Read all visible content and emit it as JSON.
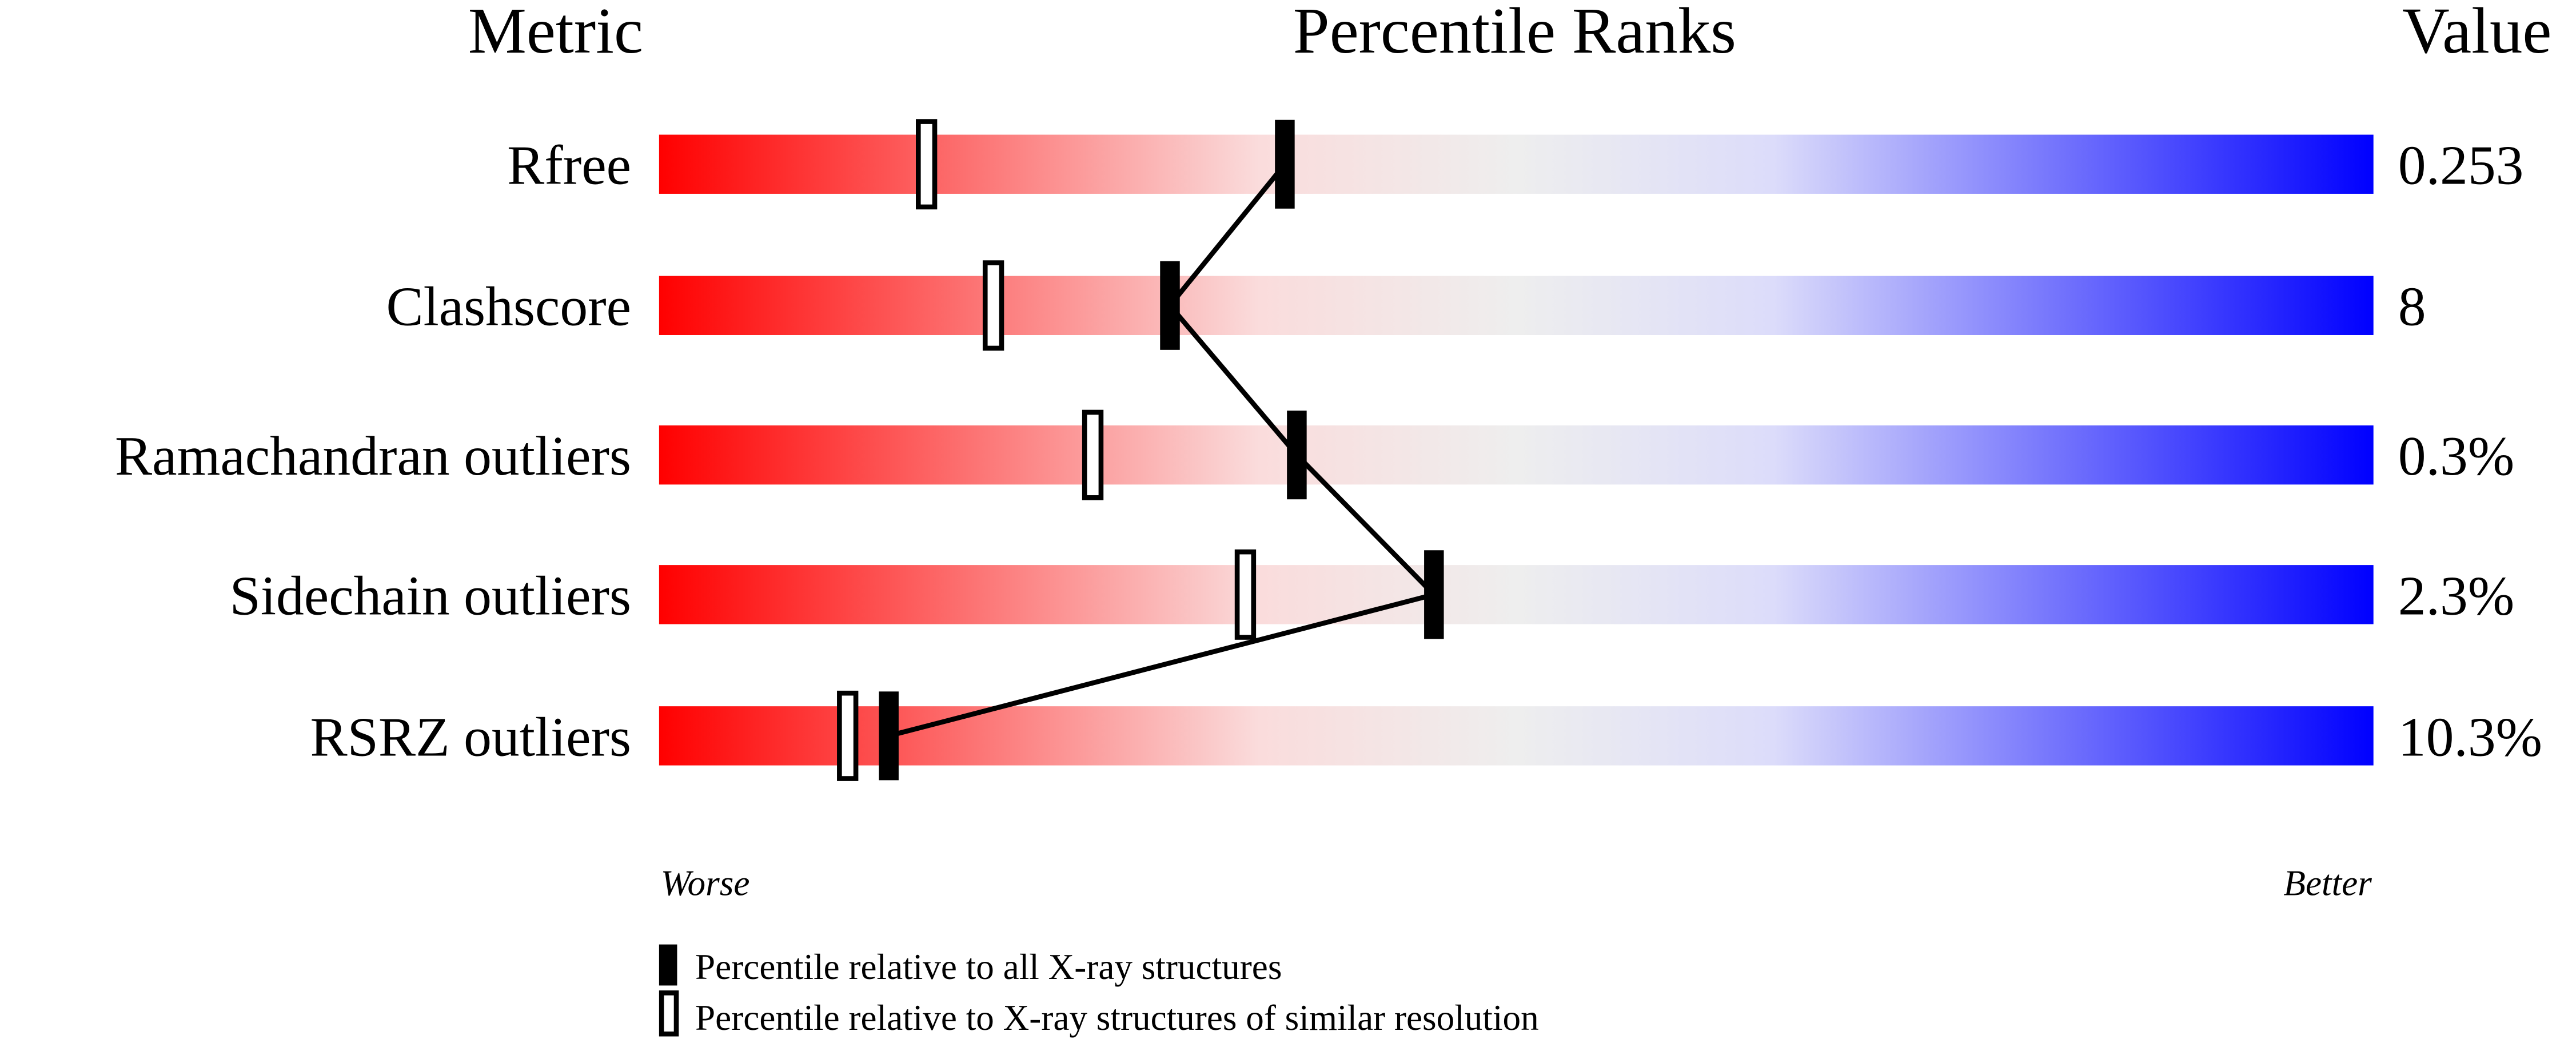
{
  "chart_data": {
    "type": "bar",
    "headers": {
      "metric": "Metric",
      "ranks": "Percentile Ranks",
      "value": "Value"
    },
    "xlim": [
      0,
      100
    ],
    "axis_labels": {
      "left": "Worse",
      "right": "Better"
    },
    "gradient_colors": [
      "#ff0000",
      "#fadcdc",
      "#eeeeee",
      "#dcdcfa",
      "#0000ff"
    ],
    "rows": [
      {
        "metric": "Rfree",
        "value": "0.253",
        "percentile_all": 36.5,
        "percentile_similar": 15.6
      },
      {
        "metric": "Clashscore",
        "value": "8",
        "percentile_all": 29.8,
        "percentile_similar": 19.5
      },
      {
        "metric": "Ramachandran outliers",
        "value": "0.3%",
        "percentile_all": 37.2,
        "percentile_similar": 25.3
      },
      {
        "metric": "Sidechain outliers",
        "value": "2.3%",
        "percentile_all": 45.2,
        "percentile_similar": 34.2
      },
      {
        "metric": "RSRZ outliers",
        "value": "10.3%",
        "percentile_all": 13.4,
        "percentile_similar": 11.0
      }
    ],
    "legend": [
      {
        "marker": "filled",
        "label": "Percentile relative to all X-ray structures"
      },
      {
        "marker": "open",
        "label": "Percentile relative to X-ray structures of similar resolution"
      }
    ]
  }
}
